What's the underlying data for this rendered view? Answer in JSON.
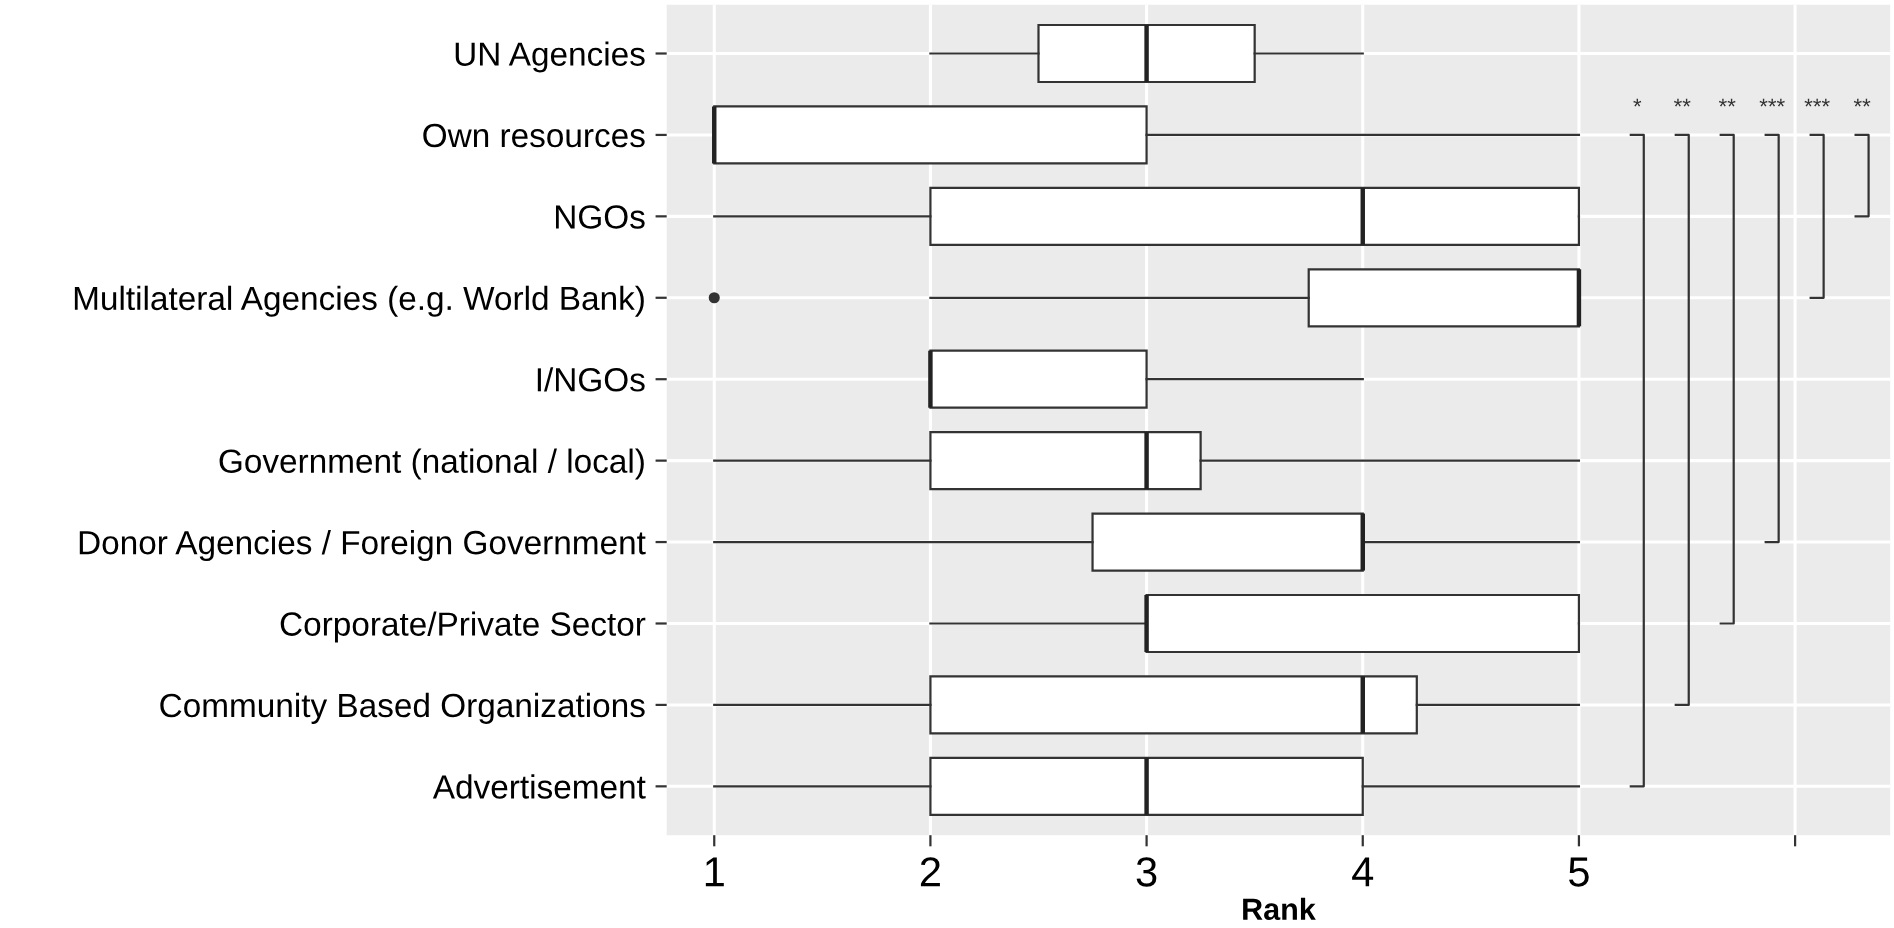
{
  "chart_data": {
    "type": "box",
    "orientation": "horizontal",
    "xlabel": "Rank",
    "categories": [
      "UN Agencies",
      "Own resources",
      "NGOs",
      "Multilateral Agencies (e.g. World Bank)",
      "I/NGOs",
      "Government (national / local)",
      "Donor Agencies / Foreign Government",
      "Corporate/Private Sector",
      "Community Based Organizations",
      "Advertisement"
    ],
    "boxes": [
      {
        "low": 2,
        "q1": 2.5,
        "median": 3,
        "q3": 3.5,
        "high": 4
      },
      {
        "low": 1,
        "q1": 1,
        "median": 1,
        "q3": 3,
        "high": 5
      },
      {
        "low": 1,
        "q1": 2,
        "median": 4,
        "q3": 5,
        "high": 5
      },
      {
        "low": 2,
        "q1": 3.75,
        "median": 5,
        "q3": 5,
        "high": 5,
        "outliers": [
          1
        ]
      },
      {
        "low": 2,
        "q1": 2,
        "median": 2,
        "q3": 3,
        "high": 4
      },
      {
        "low": 1,
        "q1": 2,
        "median": 3,
        "q3": 3.25,
        "high": 5
      },
      {
        "low": 1,
        "q1": 2.75,
        "median": 4,
        "q3": 4,
        "high": 5
      },
      {
        "low": 2,
        "q1": 3,
        "median": 3,
        "q3": 5,
        "high": 5
      },
      {
        "low": 1,
        "q1": 2,
        "median": 4,
        "q3": 4.25,
        "high": 5
      },
      {
        "low": 1,
        "q1": 2,
        "median": 3,
        "q3": 4,
        "high": 5
      }
    ],
    "xlim": [
      0.78,
      6.44
    ],
    "xticks": [
      1,
      2,
      3,
      4,
      5,
      {
        "value": 6,
        "label": null
      }
    ],
    "grid": true,
    "annotations": [
      "*",
      "**",
      "**",
      "***",
      "***",
      "**"
    ]
  }
}
